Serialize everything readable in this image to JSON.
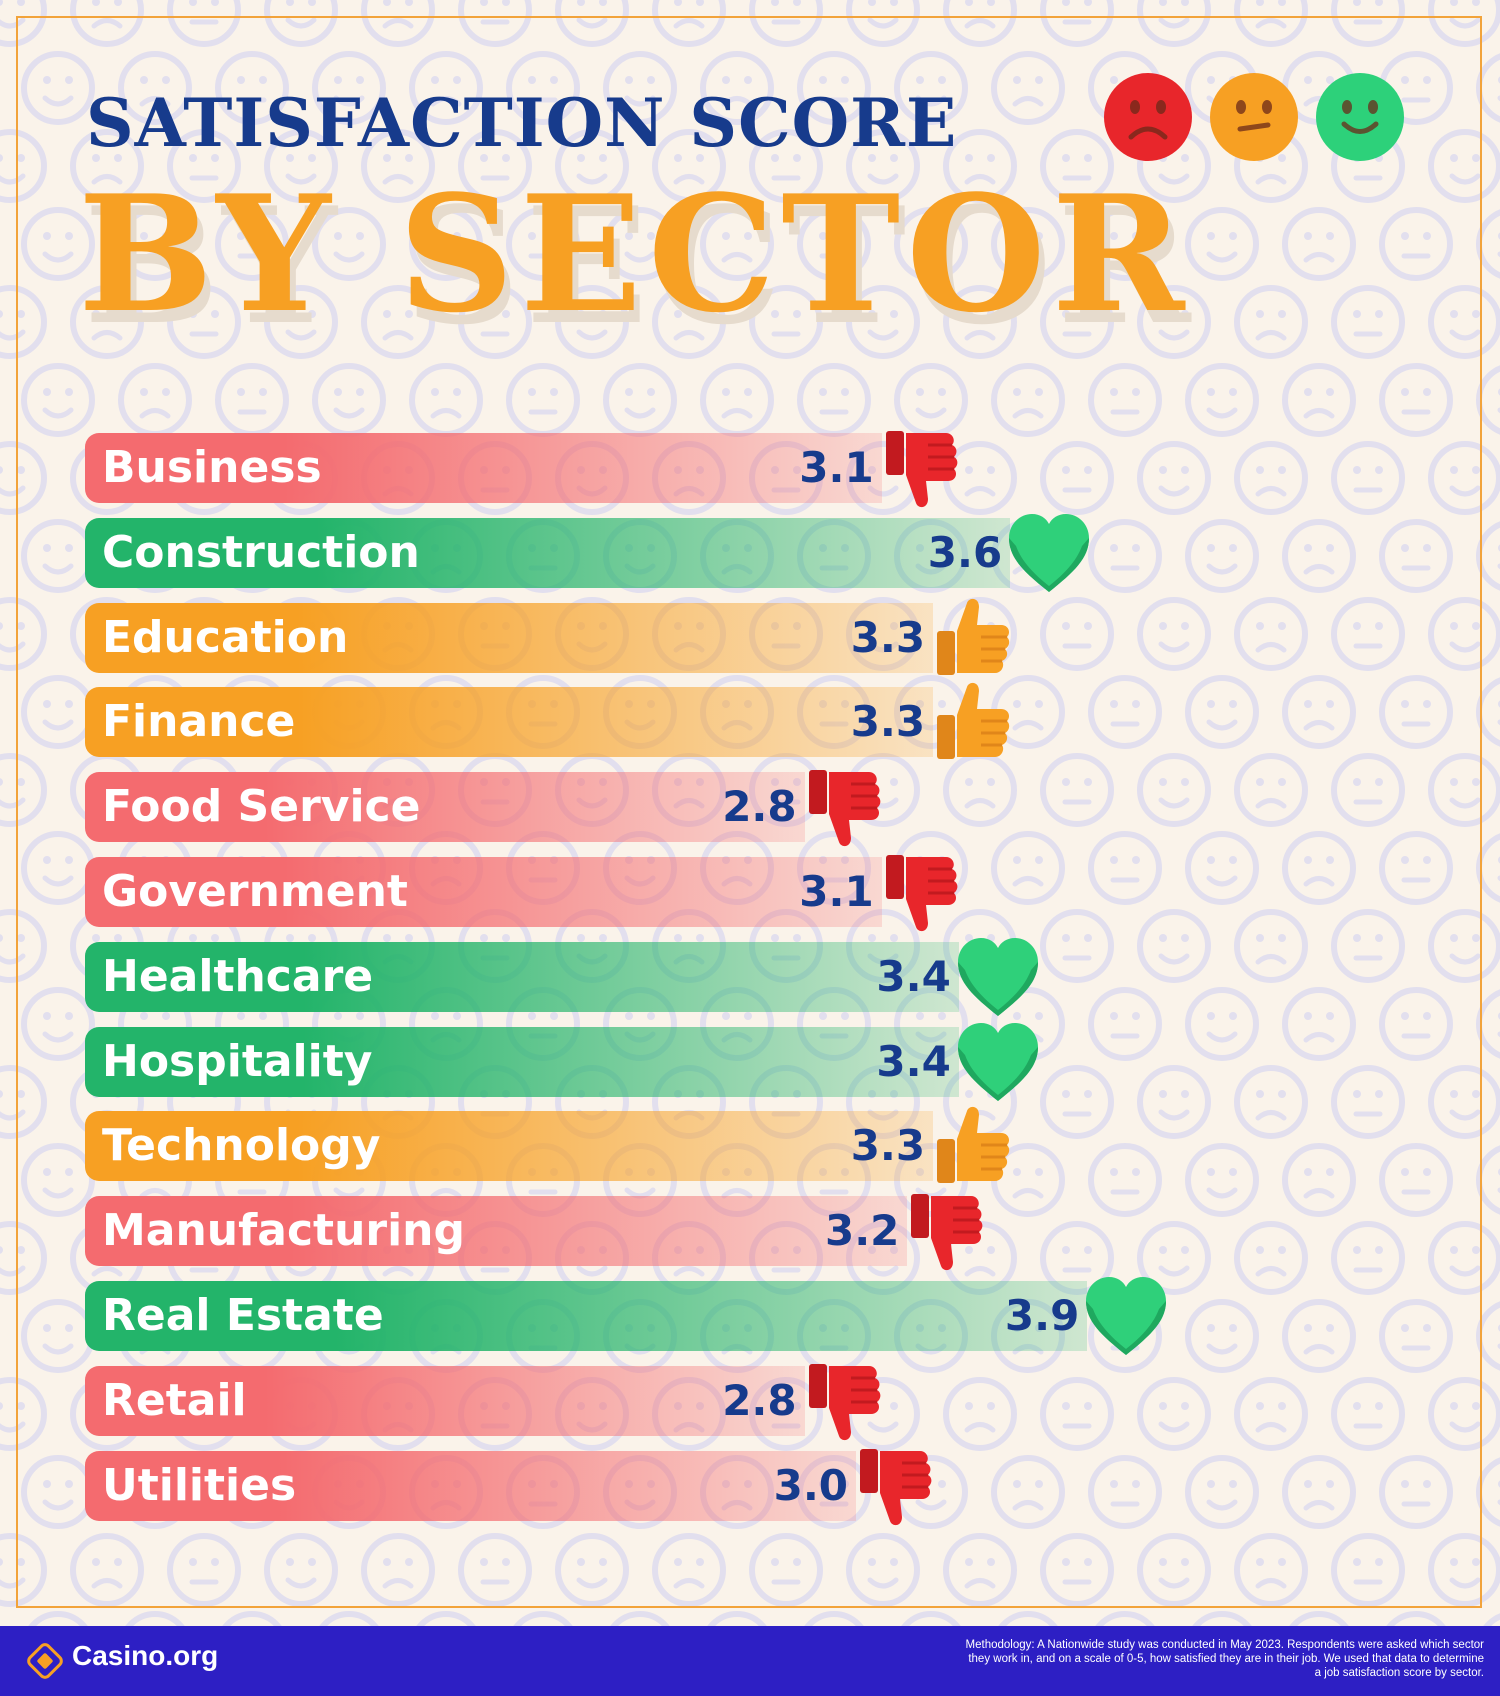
{
  "title": {
    "line1": "SATISFACTION SCORE",
    "line2": "BY SECTOR"
  },
  "title_faces": [
    "sad-face-icon",
    "neutral-face-icon",
    "happy-face-icon"
  ],
  "colors": {
    "red": "#f46b6f",
    "green": "#23b46a",
    "orange": "#f7a023",
    "navy": "#173b8c",
    "footer": "#2d1fc4"
  },
  "chart_data": {
    "type": "bar",
    "orientation": "horizontal",
    "categories": [
      "Business",
      "Construction",
      "Education",
      "Finance",
      "Food Service",
      "Government",
      "Healthcare",
      "Hospitality",
      "Technology",
      "Manufacturing",
      "Real Estate",
      "Retail",
      "Utilities"
    ],
    "values": [
      3.1,
      3.6,
      3.3,
      3.3,
      2.8,
      3.1,
      3.4,
      3.4,
      3.3,
      3.2,
      3.9,
      2.8,
      3.0
    ],
    "value_labels": [
      "3.1",
      "3.6",
      "3.3",
      "3.3",
      "2.8",
      "3.1",
      "3.4",
      "3.4",
      "3.3",
      "3.2",
      "3.9",
      "2.8",
      "3.0"
    ],
    "ratings": [
      "thumbs-down",
      "heart",
      "thumbs-up",
      "thumbs-up",
      "thumbs-down",
      "thumbs-down",
      "heart",
      "heart",
      "thumbs-up",
      "thumbs-down",
      "heart",
      "thumbs-down",
      "thumbs-down"
    ],
    "scale": [
      0,
      5
    ],
    "grid": false,
    "legend": "none"
  },
  "footer": {
    "brand": "Casino.org",
    "methodology": "Methodology: A Nationwide study was conducted in May 2023.  Respondents were asked which sector they work in, and on a scale of 0-5, how satisfied they are in their job. We used that data to determine a job satisfaction score by sector."
  }
}
